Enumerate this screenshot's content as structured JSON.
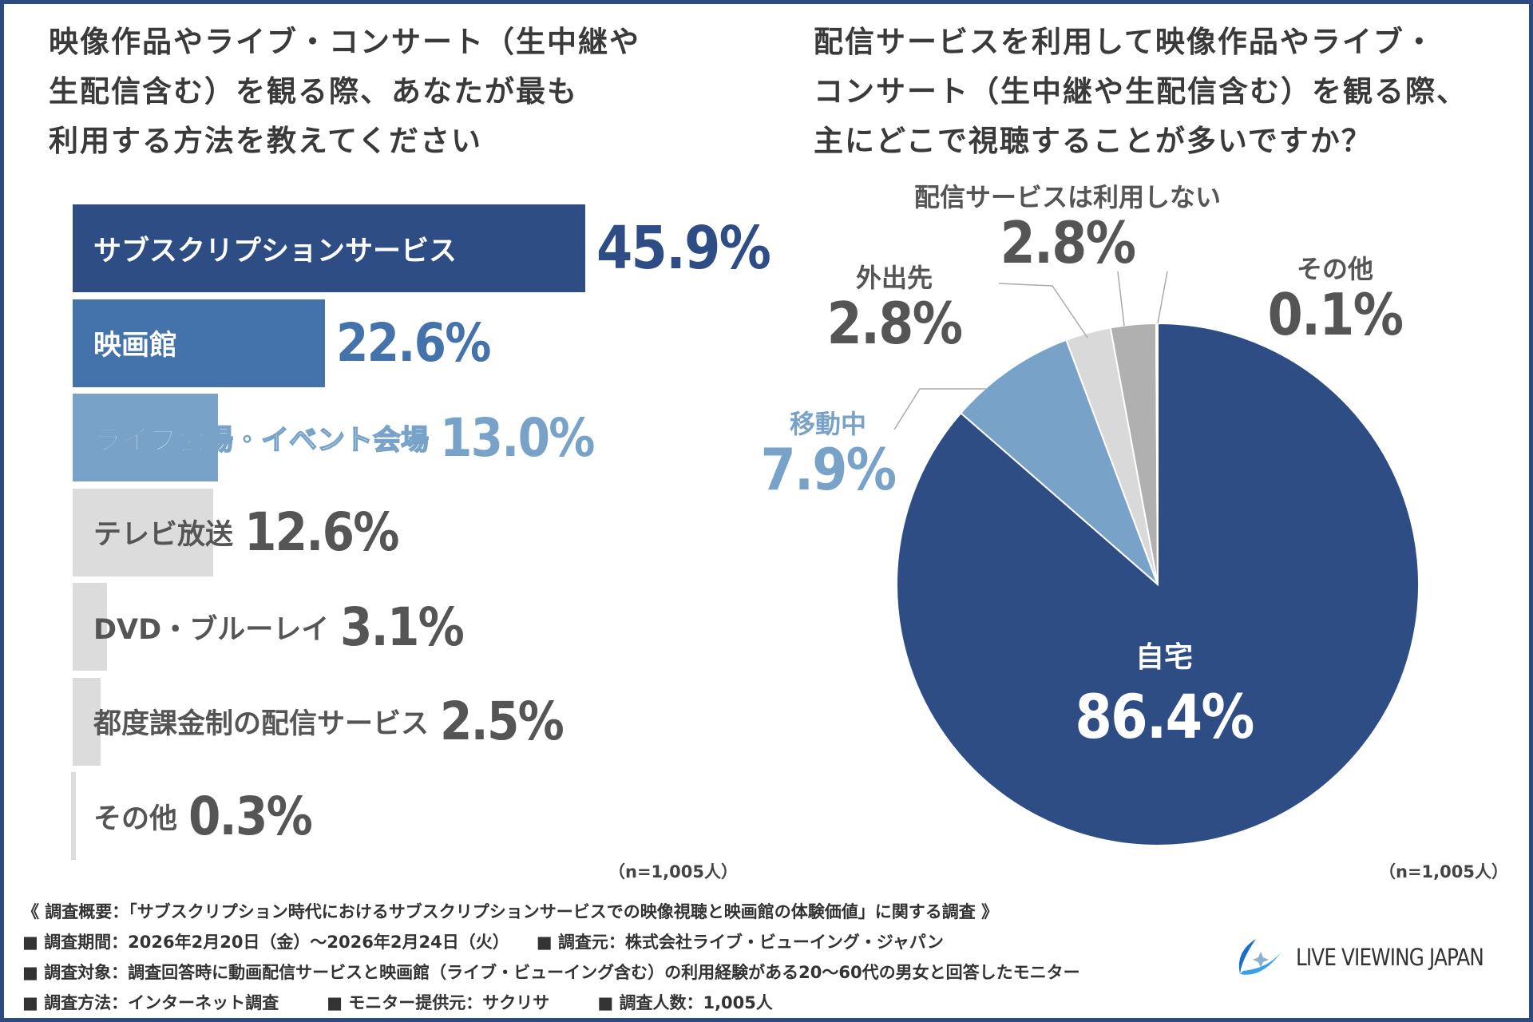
{
  "left_title": [
    "映像作品やライブ・コンサート（生中継や",
    "生配信含む）を観る際、あなたが最も",
    "利用する方法を教えてください"
  ],
  "right_title": [
    "配信サービスを利用して映像作品やライブ・",
    "コンサート（生中継や生配信含む）を観る際、",
    "主にどこで視聴することが多いですか？"
  ],
  "n_left": "（n=1,005人）",
  "n_right": "（n=1,005人）",
  "chart_data": [
    {
      "type": "bar",
      "orientation": "horizontal",
      "categories": [
        "サブスクリプションサービス",
        "映画館",
        "ライブ会場・イベント会場",
        "テレビ放送",
        "DVD・ブルーレイ",
        "都度課金制の配信サービス",
        "その他"
      ],
      "values": [
        45.9,
        22.6,
        13.0,
        12.6,
        3.1,
        2.5,
        0.3
      ],
      "value_labels": [
        "45.9%",
        "22.6%",
        "13.0%",
        "12.6%",
        "3.1%",
        "2.5%",
        "0.3%"
      ],
      "colors": [
        "#2e4d85",
        "#4472ab",
        "#78a2c8",
        "#dcdcdc",
        "#dcdcdc",
        "#dcdcdc",
        "#dcdcdc"
      ],
      "value_colors": [
        "#2e4d85",
        "#4472ab",
        "#78a2c8",
        "#555555",
        "#555555",
        "#555555",
        "#555555"
      ],
      "label_colors": [
        "#ffffff",
        "#ffffff",
        "#ffffff",
        "#555555",
        "#555555",
        "#555555",
        "#555555"
      ],
      "grid": false
    },
    {
      "type": "pie",
      "categories": [
        "自宅",
        "移動中",
        "外出先",
        "配信サービスは利用しない",
        "その他"
      ],
      "values": [
        86.4,
        7.9,
        2.8,
        2.8,
        0.1
      ],
      "value_labels": [
        "86.4%",
        "7.9%",
        "2.8%",
        "2.8%",
        "0.1%"
      ],
      "colors": [
        "#2e4d85",
        "#78a2c8",
        "#d9d9d9",
        "#b0b0b0",
        "#8c8c8c"
      ],
      "start": "top, clockwise"
    }
  ],
  "footer": {
    "summary": "《 調査概要：「サブスクリプション時代におけるサブスクリプションサービスでの映像視聴と映画館の体験価値」に関する調査 》",
    "period": "■ 調査期間：2026年2月20日（金）～2026年2月24日（火）",
    "source": "■ 調査元：株式会社ライブ・ビューイング・ジャパン",
    "target": "■ 調査対象：調査回答時に動画配信サービスと映画館（ライブ・ビューイング含む）の利用経験がある20～60代の男女と回答したモニター",
    "method": "■ 調査方法：インターネット調査",
    "provider": "■ モニター提供元：サクリサ",
    "count": "■ 調査人数：1,005人"
  },
  "logo": {
    "text": "LIVE VIEWING JAPAN",
    "icon": "live-viewing-swirl-logo"
  },
  "border_color": "#2e4a80"
}
